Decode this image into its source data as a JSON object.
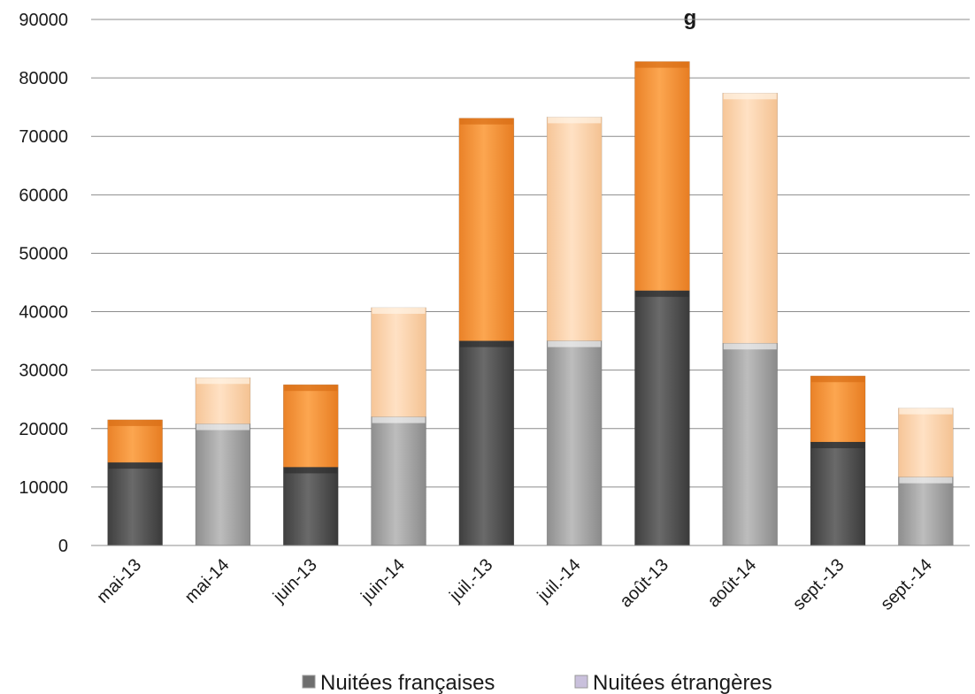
{
  "chart_data": {
    "type": "bar",
    "stacked": true,
    "title": "g",
    "categories": [
      "mai-13",
      "mai-14",
      "juin-13",
      "juin-14",
      "juil.-13",
      "juil.-14",
      "août-13",
      "août-14",
      "sept.-13",
      "sept.-14"
    ],
    "series": [
      {
        "name": "Nuitées françaises",
        "values": [
          14200,
          20800,
          13400,
          22000,
          35000,
          35000,
          43600,
          34600,
          17700,
          11700
        ]
      },
      {
        "name": "Nuitées étrangères",
        "values": [
          7300,
          7900,
          14100,
          18700,
          38100,
          38300,
          39200,
          42800,
          11300,
          11800
        ]
      }
    ],
    "year_colors": {
      "13": {
        "nuitees_francaises": "#5a5a5a",
        "nuitees_etrangeres": "#f79a3e"
      },
      "14": {
        "nuitees_francaises": "#a9a9a9",
        "nuitees_etrangeres": "#fcd6b0"
      }
    },
    "legend_marker_colors": {
      "Nuitées françaises": "#6e6e6e",
      "Nuitées étrangères": "#c9c0dc"
    },
    "ylim": [
      0,
      90000
    ],
    "yticks": [
      0,
      10000,
      20000,
      30000,
      40000,
      50000,
      60000,
      70000,
      80000,
      90000
    ],
    "xlabel": "",
    "ylabel": "",
    "grid": true,
    "legend_position": "bottom"
  }
}
